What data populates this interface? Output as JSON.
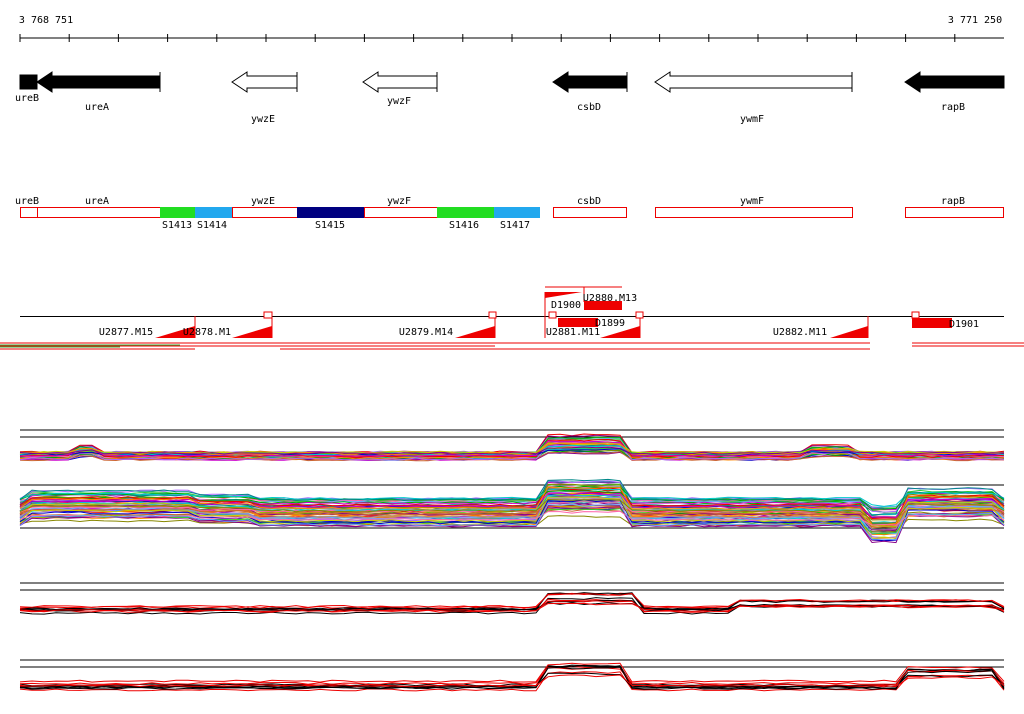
{
  "ruler": {
    "start": "3 768 751",
    "end": "3 771 250"
  },
  "genes": [
    "ureB",
    "ureA",
    "ywzE",
    "ywzF",
    "csbD",
    "ywmF",
    "rapB"
  ],
  "segments": {
    "genes": [
      "ureB",
      "ureA",
      "ywzE",
      "ywzF",
      "csbD",
      "ywmF",
      "rapB"
    ],
    "regions": [
      "S1413",
      "S1414",
      "S1415",
      "S1416",
      "S1417"
    ]
  },
  "transcripts": [
    "U2877.M15",
    "U2878.M1",
    "U2879.M14",
    "U2880.M13",
    "U2881.M11",
    "U2882.M11",
    "D1900",
    "D1899",
    "D1901"
  ]
}
